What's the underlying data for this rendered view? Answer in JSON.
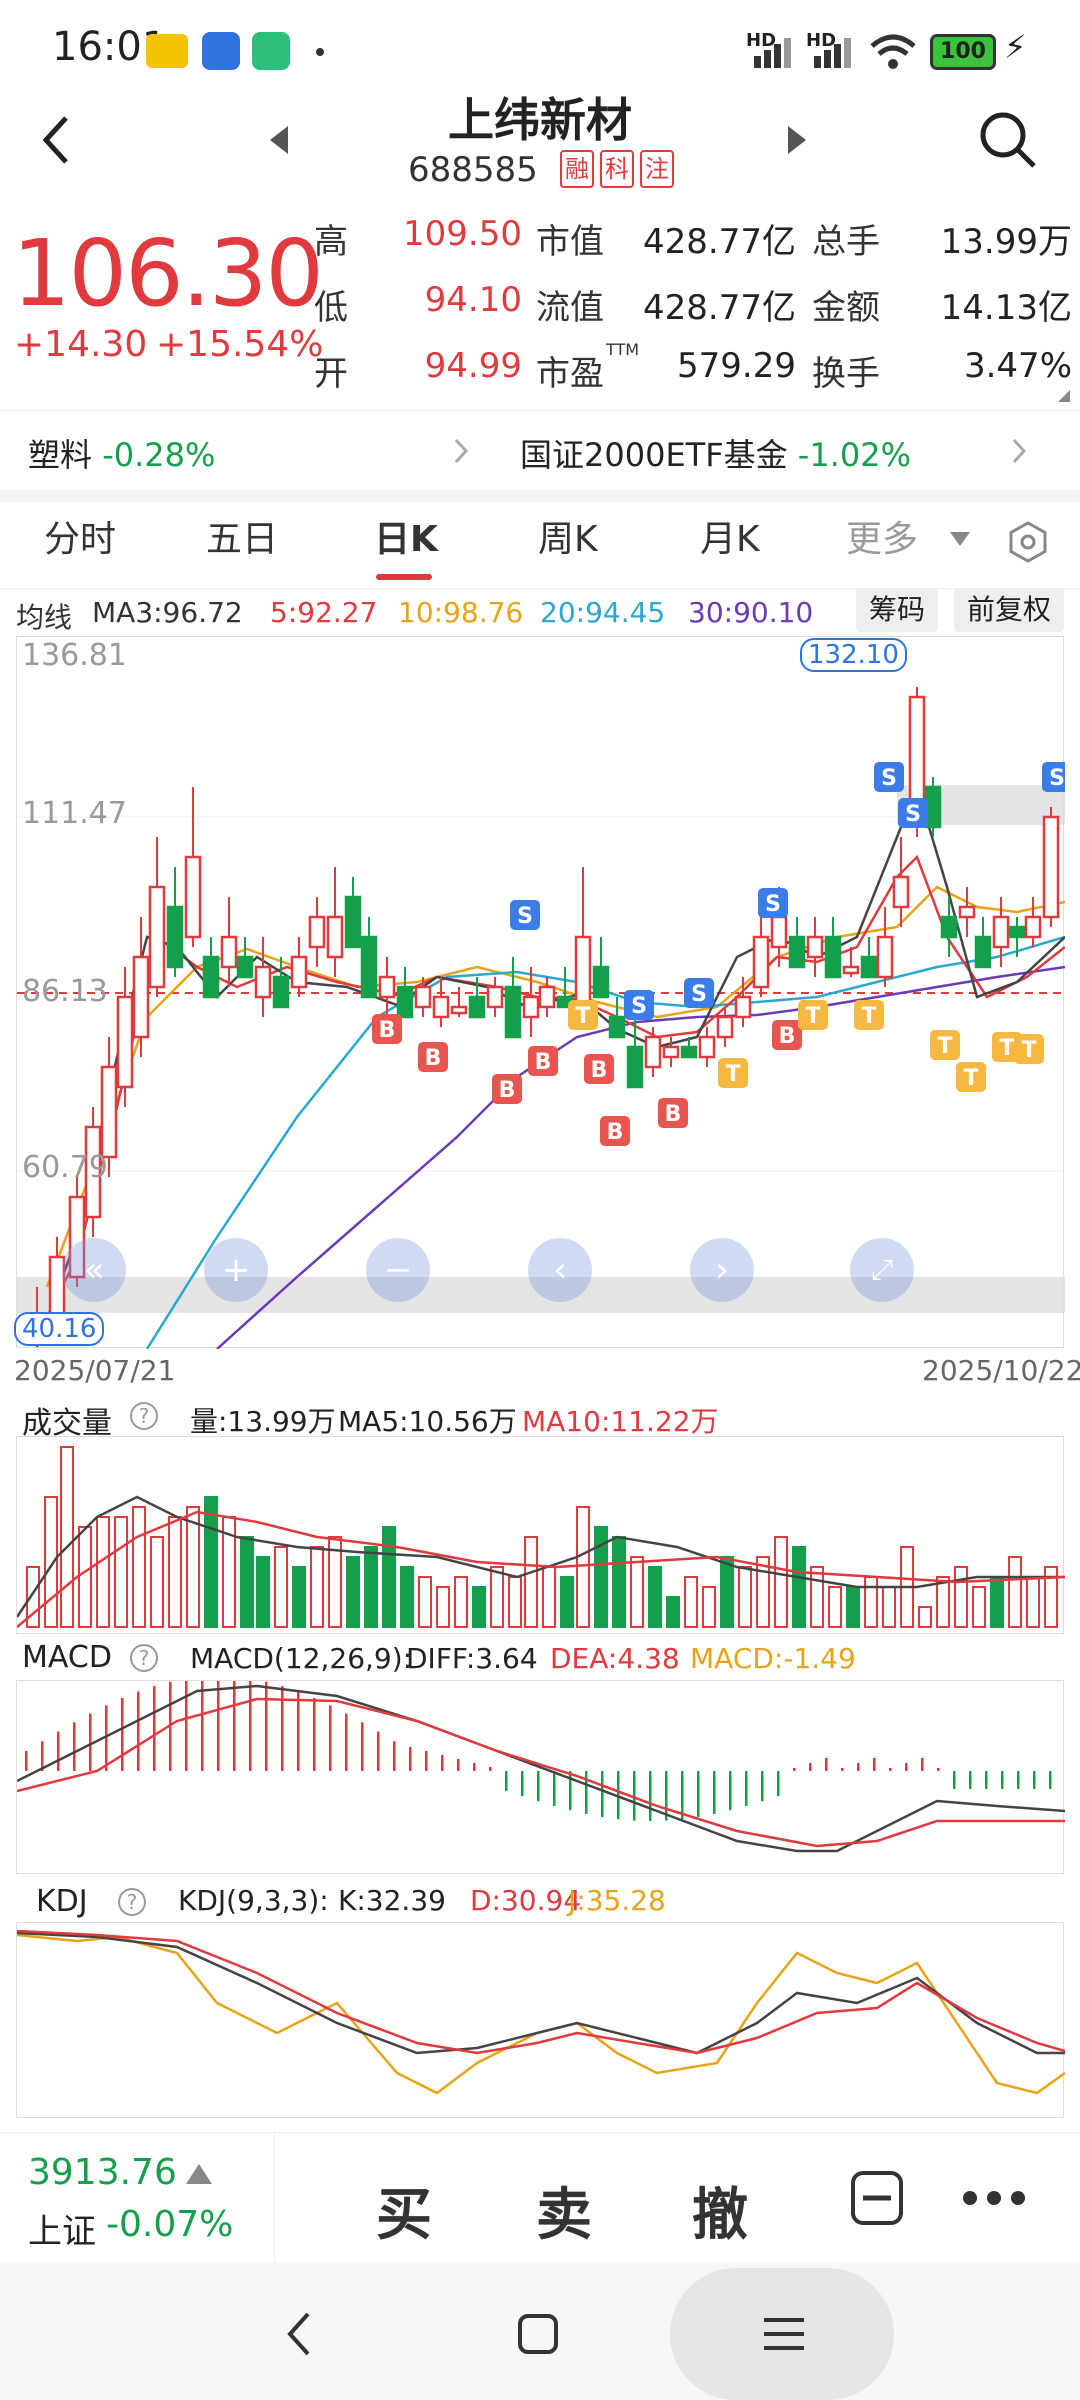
{
  "status_bar": {
    "time": "16:01",
    "net1": "HD",
    "net2": "HD",
    "battery": "100"
  },
  "header": {
    "title": "上纬新材",
    "code": "688585",
    "badges": [
      "融",
      "科",
      "注"
    ]
  },
  "quote": {
    "price": "106.30",
    "change": "+14.30",
    "change_pct": "+15.54%",
    "rows": [
      {
        "l1": "高",
        "v1": "109.50",
        "l2": "市值",
        "v2": "428.77亿",
        "l3": "总手",
        "v3": "13.99万"
      },
      {
        "l1": "低",
        "v1": "94.10",
        "l2": "流值",
        "v2": "428.77亿",
        "l3": "金额",
        "v3": "14.13亿"
      },
      {
        "l1": "开",
        "v1": "94.99",
        "l2": "市盈",
        "l2_sup": "TTM",
        "v2": "579.29",
        "l3": "换手",
        "v3": "3.47%"
      }
    ]
  },
  "sectors": [
    {
      "name": "塑料",
      "pct": "-0.28%"
    },
    {
      "name": "国证2000ETF基金",
      "pct": "-1.02%"
    }
  ],
  "tabs": [
    "分时",
    "五日",
    "日K",
    "周K",
    "月K",
    "更多"
  ],
  "active_tab": "日K",
  "ma_legend": {
    "label": "均线",
    "ma3": "MA3:96.72",
    "ma5": "5:92.27",
    "ma10": "10:98.76",
    "ma20": "20:94.45",
    "ma30": "30:90.10",
    "btn_chips": "筹码",
    "btn_adjust": "前复权"
  },
  "kline": {
    "y_labels": [
      "136.81",
      "111.47",
      "86.13",
      "60.79"
    ],
    "high_label": "132.10",
    "low_label": "40.16",
    "date_start": "2025/07/21",
    "date_end": "2025/10/22"
  },
  "volume": {
    "label": "成交量",
    "vol": "量:13.99万",
    "ma5": "MA5:10.56万",
    "ma10": "MA10:11.22万"
  },
  "macd": {
    "label": "MACD",
    "params": "MACD(12,26,9):",
    "diff": "DIFF:3.64",
    "dea": "DEA:4.38",
    "macd": "MACD:-1.49"
  },
  "kdj": {
    "label": "KDJ",
    "params": "KDJ(9,3,3):",
    "k": "K:32.39",
    "d": "D:30.94",
    "j": "J:35.28"
  },
  "bottom": {
    "index_value": "3913.76",
    "index_name": "上证",
    "index_pct": "-0.07%",
    "buy": "买",
    "sell": "卖",
    "cancel": "撤"
  },
  "colors": {
    "up": "#e0393e",
    "down": "#14a04a",
    "ma5": "#e0393e",
    "ma10": "#e8a317",
    "ma20": "#2aa8d0",
    "ma30": "#6a3ab8",
    "ma3": "#333333"
  }
}
